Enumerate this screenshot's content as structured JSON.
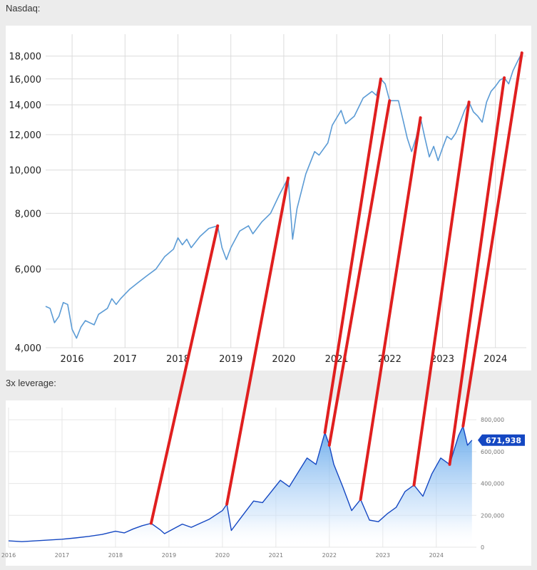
{
  "top_title": "Nasdaq:",
  "bottom_title": "3x leverage:",
  "chart_data": [
    {
      "type": "line",
      "title": "Nasdaq:",
      "yscale": "log",
      "ylim": [
        4000,
        19000
      ],
      "y_ticks": [
        4000,
        6000,
        8000,
        10000,
        12000,
        14000,
        16000,
        18000
      ],
      "y_tick_labels": [
        "4,000",
        "6,000",
        "8,000",
        "10,000",
        "12,000",
        "14,000",
        "16,000",
        "18,000"
      ],
      "x_ticks": [
        "2016",
        "2017",
        "2018",
        "2019",
        "2020",
        "2021",
        "2022",
        "2023",
        "2024"
      ],
      "xlim": [
        "2015-07",
        "2024-08"
      ],
      "grid": true,
      "line_color": "#5b9bd5",
      "series": [
        {
          "values": [
            [
              "2015-07",
              4950
            ],
            [
              "2015-08",
              4900
            ],
            [
              "2015-09",
              4550
            ],
            [
              "2015-10",
              4700
            ],
            [
              "2015-11",
              5050
            ],
            [
              "2015-12",
              5000
            ],
            [
              "2016-01",
              4400
            ],
            [
              "2016-02",
              4200
            ],
            [
              "2016-03",
              4450
            ],
            [
              "2016-04",
              4600
            ],
            [
              "2016-06",
              4500
            ],
            [
              "2016-07",
              4750
            ],
            [
              "2016-09",
              4900
            ],
            [
              "2016-10",
              5150
            ],
            [
              "2016-11",
              5000
            ],
            [
              "2016-12",
              5150
            ],
            [
              "2017-02",
              5400
            ],
            [
              "2017-04",
              5600
            ],
            [
              "2017-06",
              5800
            ],
            [
              "2017-08",
              6000
            ],
            [
              "2017-10",
              6400
            ],
            [
              "2017-12",
              6650
            ],
            [
              "2018-01",
              7050
            ],
            [
              "2018-02",
              6800
            ],
            [
              "2018-03",
              7000
            ],
            [
              "2018-04",
              6700
            ],
            [
              "2018-06",
              7100
            ],
            [
              "2018-08",
              7400
            ],
            [
              "2018-10",
              7500
            ],
            [
              "2018-11",
              6700
            ],
            [
              "2018-12",
              6300
            ],
            [
              "2019-01",
              6700
            ],
            [
              "2019-03",
              7300
            ],
            [
              "2019-05",
              7500
            ],
            [
              "2019-06",
              7200
            ],
            [
              "2019-08",
              7650
            ],
            [
              "2019-10",
              8000
            ],
            [
              "2019-12",
              8800
            ],
            [
              "2020-02",
              9600
            ],
            [
              "2020-03",
              7000
            ],
            [
              "2020-04",
              8200
            ],
            [
              "2020-06",
              9800
            ],
            [
              "2020-08",
              11000
            ],
            [
              "2020-09",
              10800
            ],
            [
              "2020-11",
              11500
            ],
            [
              "2020-12",
              12600
            ],
            [
              "2021-02",
              13600
            ],
            [
              "2021-03",
              12700
            ],
            [
              "2021-05",
              13200
            ],
            [
              "2021-07",
              14500
            ],
            [
              "2021-09",
              15000
            ],
            [
              "2021-10",
              14700
            ],
            [
              "2021-11",
              16000
            ],
            [
              "2021-12",
              15600
            ],
            [
              "2022-01",
              14300
            ],
            [
              "2022-03",
              14300
            ],
            [
              "2022-04",
              13000
            ],
            [
              "2022-05",
              11800
            ],
            [
              "2022-06",
              11000
            ],
            [
              "2022-07",
              11800
            ],
            [
              "2022-08",
              13100
            ],
            [
              "2022-09",
              11800
            ],
            [
              "2022-10",
              10700
            ],
            [
              "2022-11",
              11300
            ],
            [
              "2022-12",
              10500
            ],
            [
              "2023-01",
              11200
            ],
            [
              "2023-02",
              11900
            ],
            [
              "2023-03",
              11700
            ],
            [
              "2023-04",
              12100
            ],
            [
              "2023-05",
              12800
            ],
            [
              "2023-06",
              13600
            ],
            [
              "2023-07",
              14200
            ],
            [
              "2023-08",
              13500
            ],
            [
              "2023-09",
              13200
            ],
            [
              "2023-10",
              12800
            ],
            [
              "2023-11",
              14200
            ],
            [
              "2023-12",
              15000
            ],
            [
              "2024-01",
              15400
            ],
            [
              "2024-02",
              15900
            ],
            [
              "2024-03",
              16100
            ],
            [
              "2024-04",
              15600
            ],
            [
              "2024-05",
              16700
            ],
            [
              "2024-06",
              17500
            ],
            [
              "2024-07",
              18300
            ]
          ]
        }
      ]
    },
    {
      "type": "area",
      "title": "3x leverage:",
      "ylim": [
        0,
        850000
      ],
      "y_ticks": [
        0,
        200000,
        400000,
        600000,
        800000
      ],
      "y_tick_labels": [
        "0",
        "200,000",
        "400,000",
        "600,000",
        "800,000"
      ],
      "x_ticks": [
        "2016",
        "2017",
        "2018",
        "2019",
        "2020",
        "2021",
        "2022",
        "2023",
        "2024"
      ],
      "xlim": [
        "2016-01",
        "2024-10"
      ],
      "grid": true,
      "line_color": "#1447c2",
      "last_value_label": "671,938",
      "last_value": 671938,
      "series": [
        {
          "values": [
            [
              "2016-01",
              40000
            ],
            [
              "2016-04",
              35000
            ],
            [
              "2016-07",
              40000
            ],
            [
              "2016-10",
              45000
            ],
            [
              "2017-01",
              50000
            ],
            [
              "2017-04",
              58000
            ],
            [
              "2017-07",
              68000
            ],
            [
              "2017-10",
              80000
            ],
            [
              "2018-01",
              100000
            ],
            [
              "2018-03",
              90000
            ],
            [
              "2018-05",
              115000
            ],
            [
              "2018-07",
              135000
            ],
            [
              "2018-09",
              150000
            ],
            [
              "2018-11",
              110000
            ],
            [
              "2018-12",
              85000
            ],
            [
              "2019-02",
              115000
            ],
            [
              "2019-04",
              145000
            ],
            [
              "2019-06",
              125000
            ],
            [
              "2019-08",
              150000
            ],
            [
              "2019-10",
              175000
            ],
            [
              "2020-01",
              230000
            ],
            [
              "2020-02",
              270000
            ],
            [
              "2020-03",
              105000
            ],
            [
              "2020-05",
              180000
            ],
            [
              "2020-08",
              290000
            ],
            [
              "2020-10",
              280000
            ],
            [
              "2020-12",
              350000
            ],
            [
              "2021-02",
              420000
            ],
            [
              "2021-04",
              380000
            ],
            [
              "2021-06",
              470000
            ],
            [
              "2021-08",
              560000
            ],
            [
              "2021-10",
              520000
            ],
            [
              "2021-12",
              720000
            ],
            [
              "2022-01",
              640000
            ],
            [
              "2022-02",
              520000
            ],
            [
              "2022-04",
              380000
            ],
            [
              "2022-06",
              230000
            ],
            [
              "2022-08",
              300000
            ],
            [
              "2022-10",
              170000
            ],
            [
              "2022-12",
              160000
            ],
            [
              "2023-02",
              210000
            ],
            [
              "2023-04",
              250000
            ],
            [
              "2023-06",
              350000
            ],
            [
              "2023-08",
              390000
            ],
            [
              "2023-10",
              320000
            ],
            [
              "2023-12",
              460000
            ],
            [
              "2024-02",
              560000
            ],
            [
              "2024-04",
              520000
            ],
            [
              "2024-06",
              700000
            ],
            [
              "2024-07",
              760000
            ],
            [
              "2024-08",
              640000
            ],
            [
              "2024-09",
              672000
            ]
          ]
        }
      ]
    }
  ],
  "annotation": {
    "color": "#e01f1f",
    "connector_count": 8
  }
}
